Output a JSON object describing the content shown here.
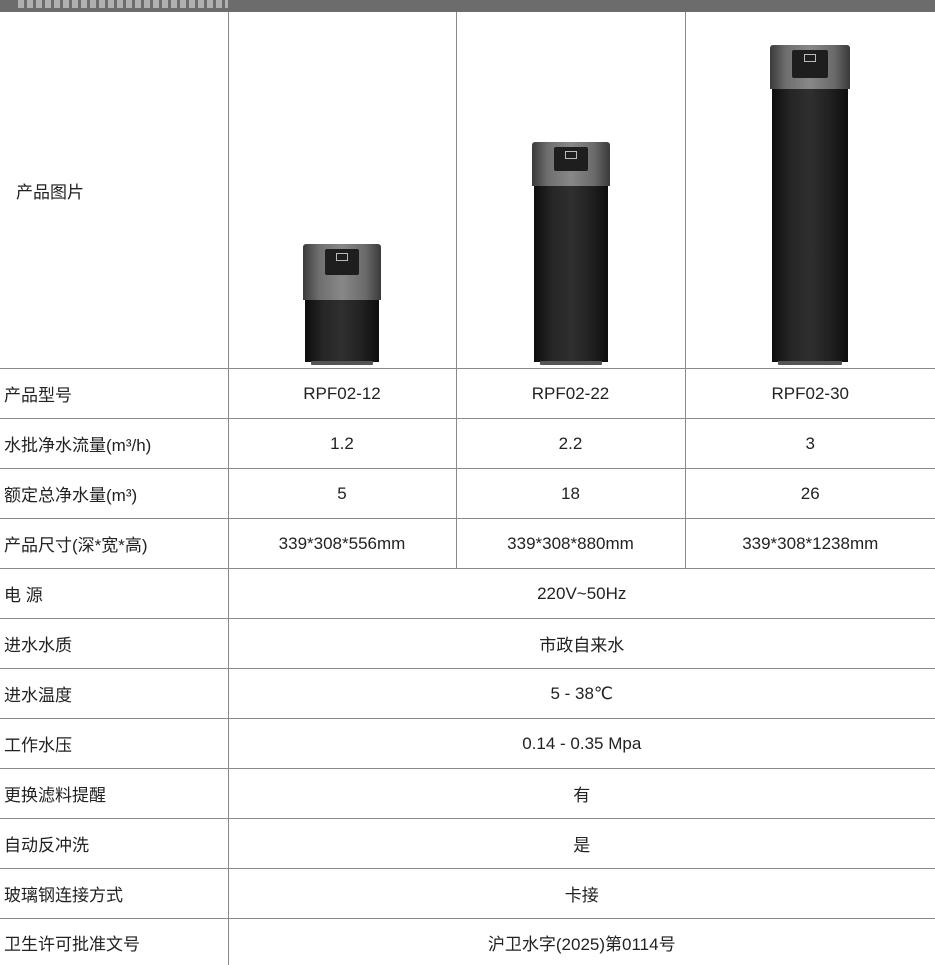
{
  "table": {
    "image_row_label": "产品图片",
    "products": [
      {
        "model": "RPF02-12",
        "flow": "1.2",
        "total": "5",
        "size": "339*308*556mm",
        "device_icon": "water-purifier-small-icon"
      },
      {
        "model": "RPF02-22",
        "flow": "2.2",
        "total": "18",
        "size": "339*308*880mm",
        "device_icon": "water-purifier-medium-icon"
      },
      {
        "model": "RPF02-30",
        "flow": "3",
        "total": "26",
        "size": "339*308*1238mm",
        "device_icon": "water-purifier-large-icon"
      }
    ],
    "labels": {
      "model": "产品型号",
      "flow": "水批净水流量(m³/h)",
      "total": "额定总净水量(m³)",
      "size": "产品尺寸(深*宽*高)",
      "power": "电 源",
      "water_source": "进水水质",
      "water_temp": "进水温度",
      "pressure": "工作水压",
      "filter_reminder": "更换滤料提醒",
      "backwash": "自动反冲洗",
      "connection": "玻璃钢连接方式",
      "permit": "卫生许可批准文号"
    },
    "shared": {
      "power": "220V~50Hz",
      "water_source": "市政自来水",
      "water_temp": "5 - 38℃",
      "pressure": "0.14 - 0.35 Mpa",
      "filter_reminder": "有",
      "backwash": "是",
      "connection": "卡接",
      "permit": "沪卫水字(2025)第0114号"
    }
  },
  "colors": {
    "header_bar": "#6c6c6c",
    "border": "#8a8a8a",
    "text": "#222222",
    "device_body": "#1e1e1e",
    "device_cap": "#7a7a7a"
  }
}
